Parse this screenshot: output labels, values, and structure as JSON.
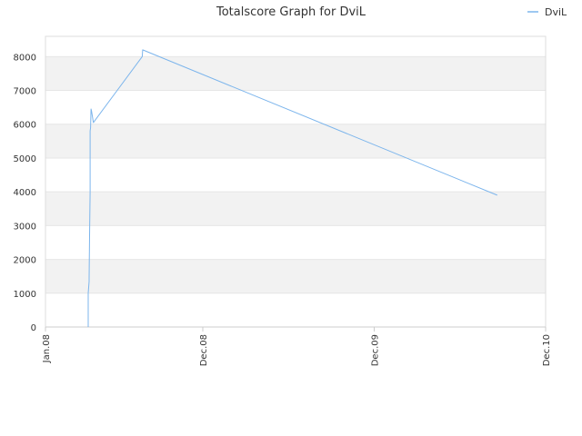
{
  "chart_data": {
    "type": "line",
    "title": "Totalscore Graph for DviL",
    "xlabel": "",
    "ylabel": "",
    "x_tick_labels": [
      "Jan.08",
      "Dec.08",
      "Dec.09",
      "Dec.10"
    ],
    "x_ticks": [
      "2008-01-01",
      "2008-12-01",
      "2009-12-01",
      "2010-12-01"
    ],
    "y_ticks": [
      0,
      1000,
      2000,
      3000,
      4000,
      5000,
      6000,
      7000,
      8000
    ],
    "xlim": [
      "2008-01-01",
      "2010-12-01"
    ],
    "ylim": [
      0,
      8600
    ],
    "grid": true,
    "legend_position": "top-right",
    "series": [
      {
        "name": "DviL",
        "color": "#7cb5ec",
        "points": [
          [
            "2008-04-01",
            0
          ],
          [
            "2008-04-01",
            1000
          ],
          [
            "2008-04-03",
            1350
          ],
          [
            "2008-04-03",
            1450
          ],
          [
            "2008-04-04",
            2700
          ],
          [
            "2008-04-05",
            4000
          ],
          [
            "2008-04-05",
            5800
          ],
          [
            "2008-04-06",
            5900
          ],
          [
            "2008-04-07",
            6450
          ],
          [
            "2008-04-08",
            6400
          ],
          [
            "2008-04-12",
            6050
          ],
          [
            "2008-07-25",
            8000
          ],
          [
            "2008-07-26",
            8200
          ],
          [
            "2010-08-20",
            3900
          ]
        ]
      }
    ]
  }
}
